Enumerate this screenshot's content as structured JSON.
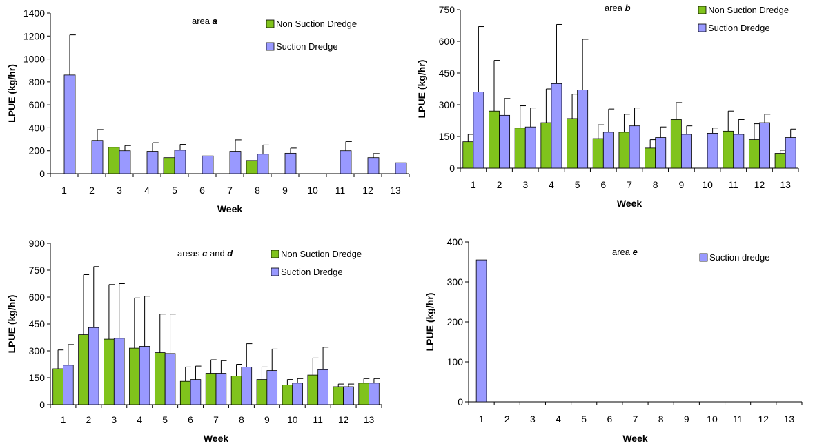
{
  "colors": {
    "non_suction": "#80c31c",
    "suction": "#9999ff",
    "outline": "#000000"
  },
  "chart_data": [
    {
      "type": "bar",
      "panel": "top-left",
      "annotation": {
        "prefix": "area ",
        "italic": "a",
        "suffix": ""
      },
      "xlabel": "Week",
      "ylabel": "LPUE (kg/hr)",
      "ylim": [
        0,
        1400
      ],
      "yticks": [
        0,
        200,
        400,
        600,
        800,
        1000,
        1200,
        1400
      ],
      "categories": [
        "1",
        "2",
        "3",
        "4",
        "5",
        "6",
        "7",
        "8",
        "9",
        "10",
        "11",
        "12",
        "13"
      ],
      "legend": {
        "placement": "top-right"
      },
      "series": [
        {
          "name": "Non Suction Dredge",
          "color_key": "non_suction",
          "values": [
            null,
            null,
            230,
            null,
            140,
            null,
            null,
            115,
            null,
            null,
            null,
            null,
            null
          ],
          "errors": [
            null,
            null,
            0,
            null,
            0,
            null,
            null,
            0,
            null,
            null,
            null,
            null,
            null
          ]
        },
        {
          "name": "Suction Dredge",
          "color_key": "suction",
          "values": [
            860,
            290,
            200,
            195,
            205,
            155,
            195,
            170,
            178,
            0,
            200,
            140,
            95
          ],
          "errors": [
            350,
            95,
            45,
            75,
            50,
            0,
            100,
            80,
            45,
            0,
            80,
            35,
            0
          ]
        }
      ]
    },
    {
      "type": "bar",
      "panel": "top-right",
      "annotation": {
        "prefix": "area ",
        "italic": "b",
        "suffix": ""
      },
      "xlabel": "Week",
      "ylabel": "LPUE (kg/hr)",
      "ylim": [
        0,
        750
      ],
      "yticks": [
        0,
        150,
        300,
        450,
        600,
        750
      ],
      "categories": [
        "1",
        "2",
        "3",
        "4",
        "5",
        "6",
        "7",
        "8",
        "9",
        "10",
        "11",
        "12",
        "13"
      ],
      "legend": {
        "placement": "top-right"
      },
      "series": [
        {
          "name": "Non Suction Dredge",
          "color_key": "non_suction",
          "values": [
            125,
            270,
            190,
            215,
            235,
            140,
            170,
            95,
            230,
            null,
            175,
            135,
            70
          ],
          "errors": [
            35,
            240,
            105,
            160,
            115,
            65,
            85,
            40,
            80,
            null,
            95,
            75,
            15
          ]
        },
        {
          "name": "Suction Dredge",
          "color_key": "suction",
          "values": [
            360,
            250,
            195,
            400,
            370,
            170,
            200,
            145,
            160,
            165,
            160,
            215,
            145
          ],
          "errors": [
            310,
            80,
            90,
            280,
            240,
            110,
            85,
            50,
            40,
            25,
            70,
            40,
            40
          ]
        }
      ]
    },
    {
      "type": "bar",
      "panel": "bottom-left",
      "annotation": {
        "prefix": "areas ",
        "italic": "c",
        "middle": " and ",
        "italic2": "d"
      },
      "xlabel": "Week",
      "ylabel": "LPUE (kg/hr)",
      "ylim": [
        0,
        900
      ],
      "yticks": [
        0,
        150,
        300,
        450,
        600,
        750,
        900
      ],
      "categories": [
        "1",
        "2",
        "3",
        "4",
        "5",
        "6",
        "7",
        "8",
        "9",
        "10",
        "11",
        "12",
        "13"
      ],
      "legend": {
        "placement": "top-right"
      },
      "series": [
        {
          "name": "Non Suction Dredge",
          "color_key": "non_suction",
          "values": [
            200,
            390,
            365,
            315,
            290,
            130,
            175,
            160,
            140,
            110,
            165,
            100,
            120
          ],
          "errors": [
            105,
            335,
            305,
            280,
            215,
            80,
            75,
            65,
            70,
            30,
            95,
            15,
            25
          ]
        },
        {
          "name": "Suction Dredge",
          "color_key": "suction",
          "values": [
            220,
            430,
            370,
            325,
            285,
            140,
            175,
            210,
            190,
            120,
            195,
            100,
            120
          ],
          "errors": [
            115,
            340,
            305,
            280,
            220,
            75,
            70,
            130,
            120,
            25,
            125,
            15,
            25
          ]
        }
      ]
    },
    {
      "type": "bar",
      "panel": "bottom-right",
      "annotation": {
        "prefix": "area ",
        "italic": "e",
        "suffix": ""
      },
      "xlabel": "Week",
      "ylabel": "LPUE (kg/hr)",
      "ylim": [
        0,
        400
      ],
      "yticks": [
        0,
        100,
        200,
        300,
        400
      ],
      "categories": [
        "1",
        "2",
        "3",
        "4",
        "5",
        "6",
        "7",
        "8",
        "9",
        "10",
        "11",
        "12",
        "13"
      ],
      "legend": {
        "placement": "top-right"
      },
      "series": [
        {
          "name": "Suction dredge",
          "color_key": "suction",
          "values": [
            355,
            0,
            0,
            0,
            0,
            0,
            0,
            0,
            0,
            0,
            0,
            0,
            0
          ],
          "errors": [
            0,
            0,
            0,
            0,
            0,
            0,
            0,
            0,
            0,
            0,
            0,
            0,
            0
          ]
        }
      ]
    }
  ]
}
